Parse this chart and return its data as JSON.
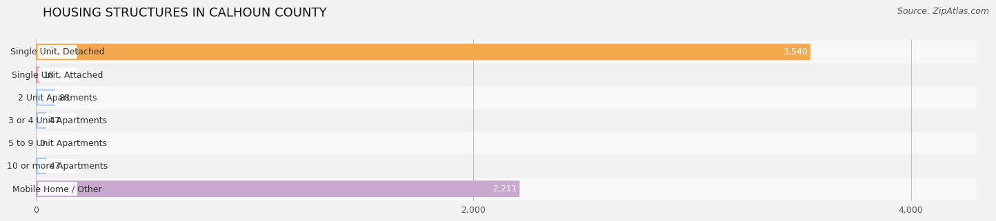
{
  "title": "HOUSING STRUCTURES IN CALHOUN COUNTY",
  "source": "Source: ZipAtlas.com",
  "categories": [
    "Single Unit, Detached",
    "Single Unit, Attached",
    "2 Unit Apartments",
    "3 or 4 Unit Apartments",
    "5 to 9 Unit Apartments",
    "10 or more Apartments",
    "Mobile Home / Other"
  ],
  "values": [
    3540,
    18,
    88,
    47,
    0,
    47,
    2211
  ],
  "bar_colors": [
    "#F5A94E",
    "#F0908A",
    "#9EC4E8",
    "#9EC4E8",
    "#9EC4E8",
    "#9EC4E8",
    "#C9A8D0"
  ],
  "background_color": "#f2f2f2",
  "bar_bg_color": "#e0e0e0",
  "row_bg_colors": [
    "#f8f8f8",
    "#f0f0f0"
  ],
  "xlim_max": 4300,
  "xticks": [
    0,
    2000,
    4000
  ],
  "xtick_labels": [
    "0",
    "2,000",
    "4,000"
  ],
  "label_inside_color": "#ffffff",
  "label_outside_color": "#444444",
  "title_fontsize": 13,
  "source_fontsize": 9,
  "value_fontsize": 9,
  "category_fontsize": 9,
  "tick_fontsize": 9
}
